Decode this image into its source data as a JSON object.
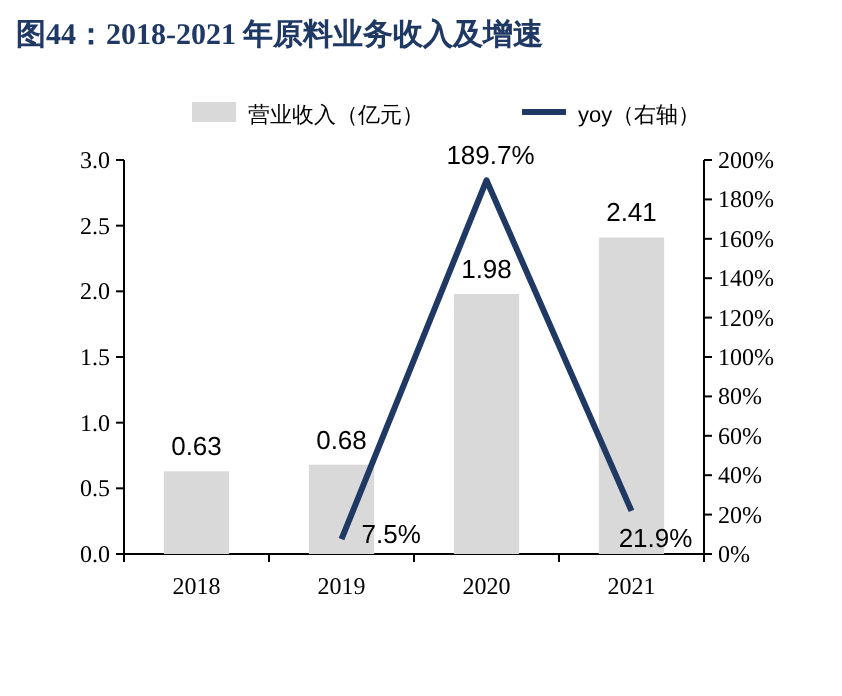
{
  "chart_data": {
    "type": "bar",
    "title": "图44：2018-2021 年原料业务收入及增速",
    "categories": [
      "2018",
      "2019",
      "2020",
      "2021"
    ],
    "series": [
      {
        "name": "营业收入（亿元）",
        "color": "#d9d9d9",
        "values": [
          0.63,
          0.68,
          1.98,
          2.41
        ],
        "data_labels": true
      },
      {
        "name": "yoy（右轴）",
        "type": "line",
        "axis": "y2",
        "color": "#1f3864",
        "values": [
          null,
          7.5,
          189.7,
          21.9
        ],
        "value_labels": [
          null,
          "7.5%",
          "189.7%",
          "21.9%"
        ]
      }
    ],
    "ylim": [
      0,
      3
    ],
    "yticks": [
      {
        "value": 0,
        "label": "0.0"
      },
      {
        "value": 0.5,
        "label": "0.5"
      },
      {
        "value": 1,
        "label": "1.0"
      },
      {
        "value": 1.5,
        "label": "1.5"
      },
      {
        "value": 2,
        "label": "2.0"
      },
      {
        "value": 2.5,
        "label": "2.5"
      },
      {
        "value": 3,
        "label": "3.0"
      }
    ],
    "y2lim": [
      0,
      200
    ],
    "y2ticks": [
      {
        "value": 0,
        "label": "0%"
      },
      {
        "value": 20,
        "label": "20%"
      },
      {
        "value": 40,
        "label": "40%"
      },
      {
        "value": 60,
        "label": "60%"
      },
      {
        "value": 80,
        "label": "80%"
      },
      {
        "value": 100,
        "label": "100%"
      },
      {
        "value": 120,
        "label": "120%"
      },
      {
        "value": 140,
        "label": "140%"
      },
      {
        "value": 160,
        "label": "160%"
      },
      {
        "value": 180,
        "label": "180%"
      },
      {
        "value": 200,
        "label": "200%"
      }
    ],
    "grid": false,
    "legend": "top"
  }
}
